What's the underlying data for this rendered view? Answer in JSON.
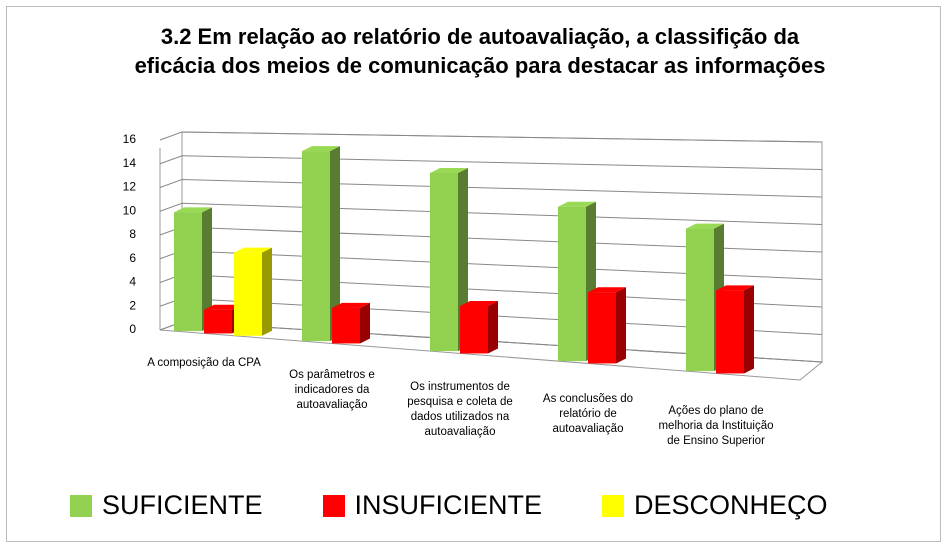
{
  "chart_data": {
    "type": "bar3d",
    "title": "3.2 Em relação ao relatório de autoavaliação, a classifição da eficácia dos meios de comunicação para destacar as informações",
    "categories": [
      "A composição da CPA",
      "Os parâmetros e indicadores da autoavaliação",
      "Os instrumentos de pesquisa e coleta de dados utilizados na autoavaliação",
      "As conclusões do relatório de autoavaliação",
      "Ações do plano de melhoria da Instituição de Ensino Superior"
    ],
    "series": [
      {
        "name": "SUFICIENTE",
        "color": "#92d050",
        "values": [
          10,
          16,
          15,
          13,
          12
        ]
      },
      {
        "name": "INSUFICIENTE",
        "color": "#ff0000",
        "values": [
          2,
          3,
          4,
          6,
          7
        ]
      },
      {
        "name": "DESCONHEÇO",
        "color": "#ffff00",
        "values": [
          7,
          null,
          null,
          null,
          null
        ]
      }
    ],
    "ylim": [
      0,
      16
    ],
    "yticks": [
      0,
      2,
      4,
      6,
      8,
      10,
      12,
      14,
      16
    ],
    "grid": true,
    "legend": "bottom"
  }
}
